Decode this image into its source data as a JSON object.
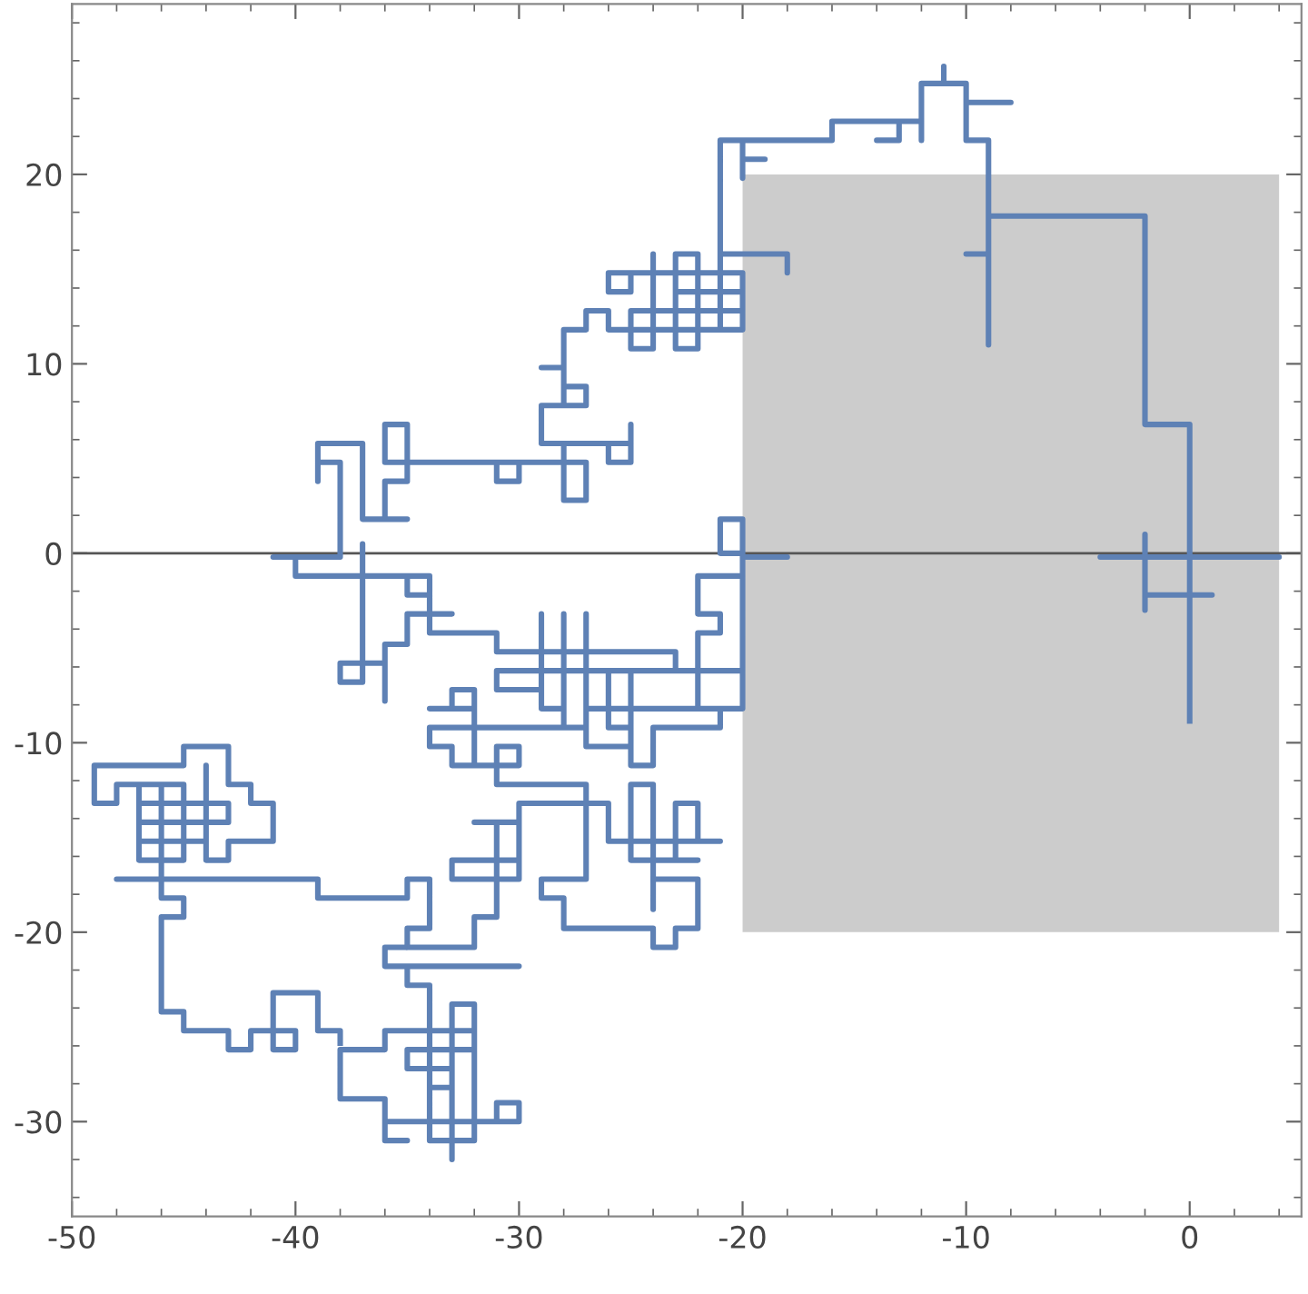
{
  "chart_data": {
    "type": "line",
    "xlim": [
      -50,
      5
    ],
    "ylim": [
      -35,
      29
    ],
    "xticks": [
      -50,
      -40,
      -30,
      -20,
      -10,
      0
    ],
    "yticks": [
      -30,
      -20,
      -10,
      0,
      10,
      20
    ],
    "grid": false,
    "legend": false,
    "marker": "none",
    "line_style": "solid",
    "ref_lines": [
      {
        "axis": "y",
        "value": 0,
        "color": "#555555"
      }
    ],
    "series": [
      {
        "type": "area",
        "color": "#cccccc",
        "x": [
          -20,
          4
        ],
        "values": [
          20,
          20
        ]
      },
      {
        "type": "area",
        "color": "#cccccc",
        "x": [
          -20,
          4
        ],
        "values": [
          -20,
          -20
        ]
      },
      {
        "color": "#5e81b5",
        "x": [
          0,
          0,
          4,
          -4,
          -2,
          -2,
          -2,
          -2,
          1,
          0,
          0,
          -2,
          -2,
          -9,
          -9,
          -9,
          -10,
          -9,
          -9,
          -10,
          -10,
          -8,
          -10,
          -10,
          -11,
          -11,
          -11,
          -12,
          -12,
          -12,
          -13,
          -13,
          -14,
          -13,
          -13,
          -16,
          -16,
          -20,
          -20,
          -19,
          -20,
          -20,
          -20,
          -21,
          -21,
          -18,
          -18,
          -18,
          -21,
          -21,
          -23,
          -23,
          -22,
          -22,
          -23,
          -23,
          -20,
          -20,
          -24,
          -24,
          -25,
          -25,
          -20,
          -20,
          -26,
          -26,
          -25,
          -25,
          -24,
          -24,
          -24,
          -26,
          -26,
          -27,
          -27,
          -28,
          -28,
          -29,
          -28,
          -28,
          -27,
          -27,
          -28,
          -28,
          -29,
          -29,
          -25,
          -25,
          -25,
          -26,
          -26,
          -28,
          -28,
          -27,
          -27,
          -31,
          -31,
          -30,
          -30,
          -36,
          -36,
          -35,
          -35,
          -36,
          -36,
          -35,
          -37,
          -37,
          -39,
          -39,
          -39,
          -38,
          -38,
          -41,
          -40,
          -40,
          -35,
          -37,
          -37,
          -37,
          -38,
          -38,
          -36,
          -36,
          -36,
          -35,
          -35,
          -33,
          -34,
          -34,
          -35,
          -35,
          -34,
          -34,
          -31,
          -31,
          -23,
          -23,
          -20,
          -20,
          -22,
          -22,
          -21,
          -21,
          -22,
          -22,
          -20,
          -20,
          -21,
          -21,
          -20,
          -20,
          -18,
          -20,
          -20,
          -31,
          -31,
          -29,
          -29,
          -29,
          -28,
          -28,
          -28,
          -27,
          -27,
          -27,
          -21,
          -21,
          -24,
          -24,
          -25,
          -25,
          -26,
          -26,
          -25,
          -25,
          -27,
          -27,
          -32,
          -32,
          -33,
          -33,
          -34,
          -32,
          -32,
          -34,
          -34,
          -33,
          -33,
          -32,
          -32,
          -32,
          -30,
          -30,
          -31,
          -31,
          -27,
          -27,
          -29,
          -29,
          -28,
          -28,
          -24,
          -24,
          -23,
          -23,
          -22,
          -22,
          -24,
          -24,
          -24,
          -25,
          -25,
          -22,
          -23,
          -23,
          -22,
          -22,
          -21,
          -26,
          -26,
          -30,
          -30,
          -31,
          -31,
          -32,
          -30,
          -30,
          -33,
          -33,
          -31,
          -31,
          -32,
          -32,
          -35,
          -35,
          -34,
          -34,
          -35,
          -35,
          -39,
          -39,
          -48,
          -46,
          -46,
          -47,
          -47,
          -48,
          -48,
          -49,
          -49,
          -45,
          -45,
          -43,
          -43,
          -42,
          -42,
          -41,
          -41,
          -43,
          -43,
          -44,
          -44,
          -44,
          -47,
          -47,
          -43,
          -43,
          -47,
          -47,
          -45,
          -45,
          -46,
          -46,
          -46,
          -45,
          -45,
          -46,
          -46,
          -45,
          -45,
          -43,
          -43,
          -42,
          -42,
          -40,
          -40,
          -41,
          -41,
          -39,
          -39,
          -38,
          -38
        ],
        "values": [
          -9,
          -0.2,
          -0.2,
          -0.2,
          -0.2,
          1,
          -3,
          -2.2,
          -2.2,
          -2.2,
          6.8,
          6.8,
          17.8,
          17.8,
          11,
          15.8,
          15.8,
          15.8,
          21.8,
          21.8,
          23.8,
          23.8,
          23.8,
          24.8,
          24.8,
          25.7,
          24.8,
          24.8,
          21.8,
          22.8,
          22.8,
          21.8,
          21.8,
          21.8,
          22.8,
          22.8,
          21.8,
          21.8,
          20.8,
          20.8,
          20.8,
          19.8,
          21.8,
          21.8,
          15.8,
          15.8,
          14.8,
          15.8,
          15.8,
          11.8,
          11.8,
          15.8,
          15.8,
          10.8,
          10.8,
          13.8,
          13.8,
          11.8,
          11.8,
          10.8,
          10.8,
          12.8,
          12.8,
          14.8,
          14.8,
          13.8,
          13.8,
          14.8,
          14.8,
          15.8,
          11.8,
          11.8,
          12.8,
          12.8,
          11.8,
          11.8,
          9.8,
          9.8,
          9.8,
          7.8,
          7.8,
          8.8,
          8.8,
          7.8,
          7.8,
          5.8,
          5.8,
          6.8,
          4.8,
          4.8,
          5.8,
          5.8,
          2.8,
          2.8,
          4.8,
          4.8,
          3.8,
          3.8,
          4.8,
          4.8,
          6.8,
          6.8,
          3.8,
          3.8,
          1.8,
          1.8,
          1.8,
          5.8,
          5.8,
          3.8,
          4.8,
          4.8,
          -0.2,
          -0.2,
          -0.2,
          -1.2,
          -1.2,
          -1.2,
          0.5,
          -6.8,
          -6.8,
          -5.8,
          -5.8,
          -7.8,
          -4.8,
          -4.8,
          -3.2,
          -3.2,
          -3.2,
          -1.2,
          -1.2,
          -2.2,
          -2.2,
          -4.2,
          -4.2,
          -5.2,
          -5.2,
          -6.2,
          -6.2,
          -8.2,
          -8.2,
          -4.2,
          -4.2,
          -3.2,
          -3.2,
          -1.2,
          -1.2,
          1.8,
          1.8,
          0,
          0,
          -0.2,
          -0.2,
          -0.2,
          -6.2,
          -6.2,
          -7.2,
          -7.2,
          -3.2,
          -8.2,
          -8.2,
          -3.2,
          -9.2,
          -9.2,
          -3.2,
          -8.2,
          -8.2,
          -9.2,
          -9.2,
          -11.2,
          -11.2,
          -9.2,
          -9.2,
          -6.2,
          -6.2,
          -10.2,
          -10.2,
          -9.2,
          -9.2,
          -7.2,
          -7.2,
          -8.2,
          -8.2,
          -8.2,
          -9.2,
          -9.2,
          -10.2,
          -10.2,
          -11.2,
          -11.2,
          -9.2,
          -11.2,
          -11.2,
          -10.2,
          -10.2,
          -12.2,
          -12.2,
          -17.2,
          -17.2,
          -18.2,
          -18.2,
          -19.8,
          -19.8,
          -20.8,
          -20.8,
          -19.8,
          -19.8,
          -17.2,
          -17.2,
          -18.8,
          -12.2,
          -12.2,
          -16.2,
          -16.2,
          -16.2,
          -13.2,
          -13.2,
          -15.2,
          -15.2,
          -15.2,
          -13.2,
          -13.2,
          -16.2,
          -16.2,
          -14.2,
          -14.2,
          -14.2,
          -17.2,
          -17.2,
          -16.2,
          -16.2,
          -19.2,
          -19.2,
          -20.8,
          -20.8,
          -19.8,
          -19.8,
          -17.2,
          -17.2,
          -18.2,
          -18.2,
          -17.2,
          -17.2,
          -17.2,
          -16.2,
          -16.2,
          -12.2,
          -12.2,
          -13.2,
          -13.2,
          -11.2,
          -11.2,
          -10.2,
          -10.2,
          -12.2,
          -12.2,
          -13.2,
          -13.2,
          -15.2,
          -15.2,
          -16.2,
          -16.2,
          -11.2,
          -15.2,
          -15.2,
          -14.2,
          -14.2,
          -13.2,
          -13.2,
          -12.2,
          -12.2,
          -16.2,
          -16.2,
          -12.2,
          -18.2,
          -18.2,
          -19.2,
          -19.2,
          -24.2,
          -24.2,
          -25.2,
          -25.2,
          -26.2,
          -26.2,
          -25.2,
          -25.2,
          -26.2,
          -26.2,
          -23.2,
          -23.2,
          -25.2,
          -25.2,
          -26
        ]
      },
      {
        "color": "#5e81b5",
        "x": [
          -35,
          -36,
          -36,
          -30,
          -35,
          -35,
          -34,
          -34,
          -32,
          -32,
          -33,
          -33,
          -33,
          -30,
          -30,
          -31,
          -31,
          -36,
          -36,
          -35,
          -36,
          -36,
          -38,
          -38,
          -36,
          -36,
          -32,
          -32,
          -35,
          -35,
          -33,
          -33,
          -34,
          -34
        ],
        "values": [
          -20.8,
          -20.8,
          -21.8,
          -21.8,
          -21.8,
          -22.8,
          -22.8,
          -31,
          -31,
          -23.8,
          -23.8,
          -32,
          -30,
          -30,
          -29,
          -29,
          -30,
          -30,
          -31,
          -31,
          -31,
          -28.8,
          -28.8,
          -26.2,
          -26.2,
          -25.2,
          -25.2,
          -26.2,
          -26.2,
          -27.2,
          -27.2,
          -28.2,
          -28.2,
          -29.2
        ]
      }
    ]
  }
}
